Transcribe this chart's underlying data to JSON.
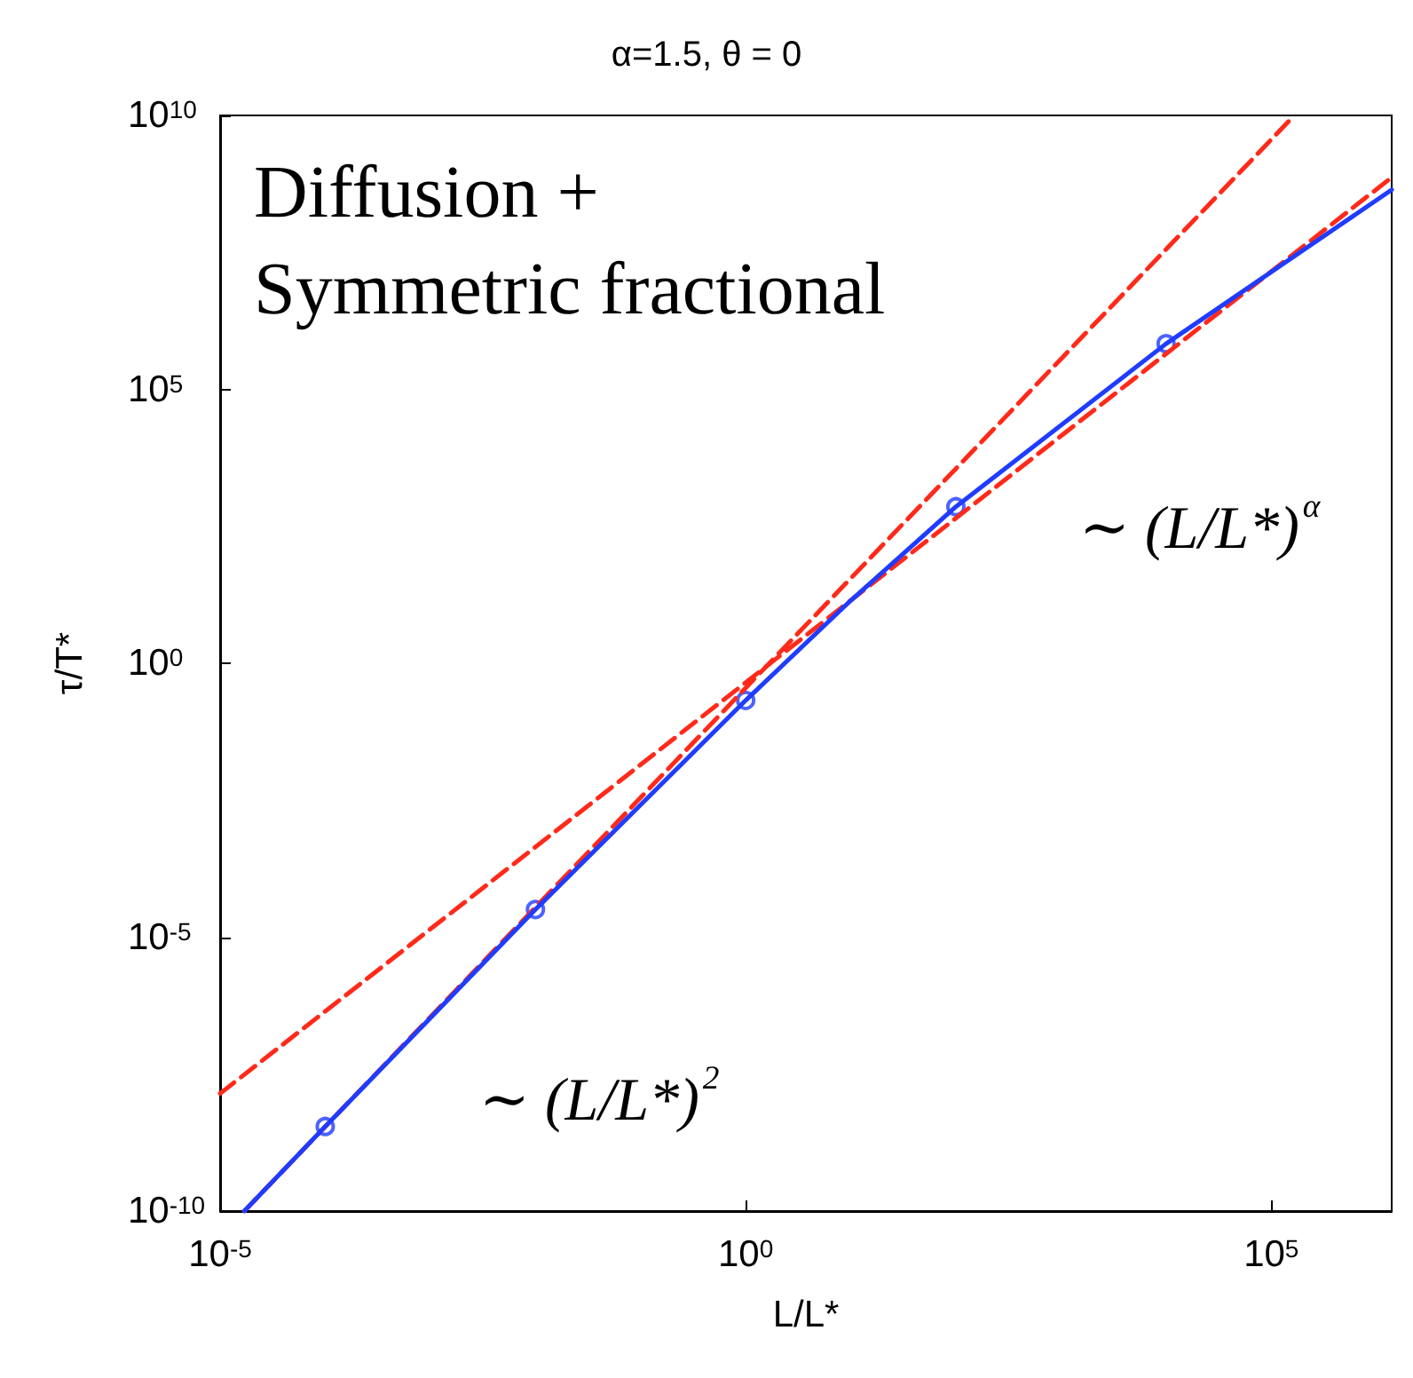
{
  "chart_data": {
    "type": "line",
    "title": "α=1.5, θ = 0",
    "xlabel": "L/L*",
    "ylabel": "τ/T*",
    "log": "xy",
    "grid": false,
    "xlim": [
      1e-05,
      1400000.0
    ],
    "ylim": [
      1e-10,
      10000000000.0
    ],
    "xticks": [
      {
        "value": 1e-05,
        "label": "10$^{-5}$"
      },
      {
        "value": 1,
        "label": "10$^{0}$"
      },
      {
        "value": 100000.0,
        "label": "10$^{5}$"
      }
    ],
    "yticks": [
      {
        "value": 1e-10,
        "label": "10$^{-10}$"
      },
      {
        "value": 1e-05,
        "label": "10$^{-5}$"
      },
      {
        "value": 1,
        "label": "10$^{0}$"
      },
      {
        "value": 100000.0,
        "label": "10$^{5}$"
      },
      {
        "value": 10000000000.0,
        "label": "10$^{10}$"
      }
    ],
    "series": [
      {
        "type": "line",
        "color": "#ff2a1a",
        "line_style": "dashed",
        "marker": "none",
        "x": [
          1.7e-05,
          166000.0
        ],
        "values": [
          1e-10,
          10000000000.0
        ]
      },
      {
        "type": "line",
        "color": "#ff2a1a",
        "line_style": "dashed",
        "marker": "none",
        "x": [
          1e-05,
          1400000.0
        ],
        "values": [
          1.4e-08,
          740000000.0
        ]
      },
      {
        "type": "line",
        "color": "#1f3cff",
        "line_style": "solid",
        "marker": "none",
        "x": [
          1.7e-05,
          0.0001,
          0.01,
          1,
          10,
          100,
          10000,
          1400000.0
        ],
        "values": [
          1e-10,
          3.5e-09,
          3.2e-05,
          0.21,
          14,
          720,
          680000,
          440000000.0
        ]
      },
      {
        "type": "scatter",
        "color": "#1f3cff",
        "marker": "circle",
        "x": [
          0.0001,
          0.01,
          1,
          100,
          10000
        ],
        "values": [
          3.5e-09,
          3.2e-05,
          0.21,
          720,
          680000
        ]
      }
    ],
    "annotations": [
      "Diffusion +\nSymmetric fractional",
      "∼ (L/L*)$^{α}$",
      "∼ (L/L*)$^{2}$"
    ]
  }
}
